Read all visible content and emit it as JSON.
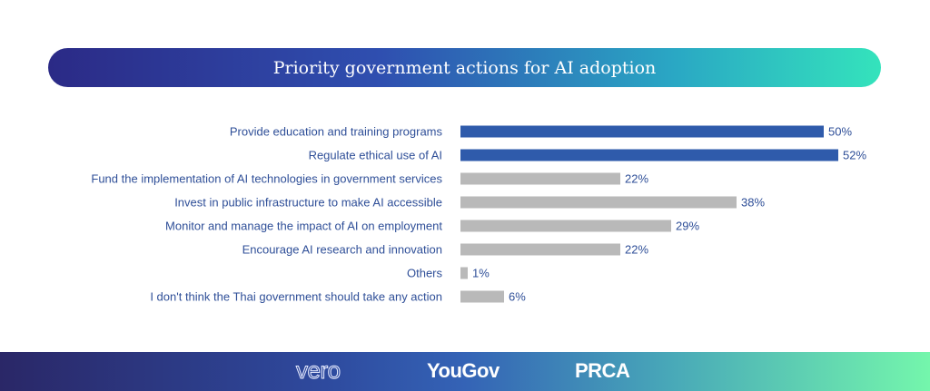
{
  "chart_data": {
    "type": "bar",
    "orientation": "horizontal",
    "title": "Priority government actions for AI adoption",
    "categories": [
      "Provide education and training programs",
      "Regulate ethical use of AI",
      "Fund the implementation of AI technologies in government services",
      "Invest in public infrastructure to make AI accessible",
      "Monitor and manage the impact of AI on employment",
      "Encourage AI research and innovation",
      "Others",
      "I don't think the Thai government should take any action"
    ],
    "values": [
      50,
      52,
      22,
      38,
      29,
      22,
      1,
      6
    ],
    "value_labels": [
      "50%",
      "52%",
      "22%",
      "38%",
      "29%",
      "22%",
      "1%",
      "6%"
    ],
    "highlighted": [
      true,
      true,
      false,
      false,
      false,
      false,
      false,
      false
    ],
    "colors": {
      "highlight": "#2f5bab",
      "default": "#b9b9b9",
      "label": "#2f4f98"
    },
    "unit": "%",
    "grid": false
  },
  "footer": {
    "logos": [
      "vero",
      "YouGov",
      "PRCA"
    ]
  }
}
